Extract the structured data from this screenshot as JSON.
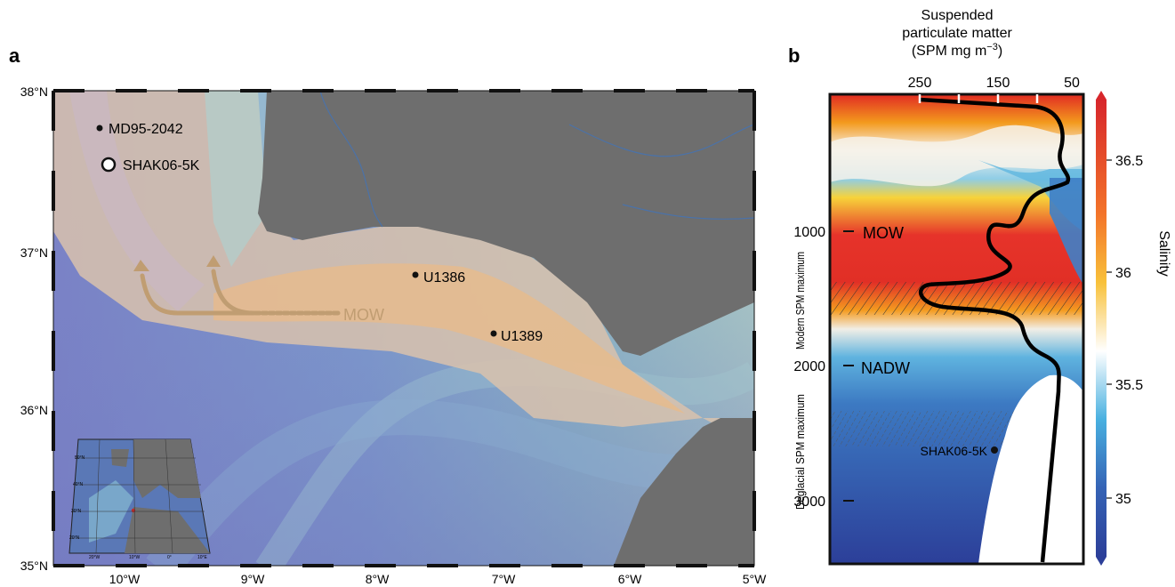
{
  "panel_a": {
    "label": "a",
    "y_ticks": [
      "38°N",
      "37°N",
      "36°N",
      "35°N"
    ],
    "x_ticks": [
      "10°W",
      "9°W",
      "8°W",
      "7°W",
      "6°W",
      "5°W"
    ],
    "sites": [
      {
        "name": "MD95-2042",
        "lon": -10.17,
        "lat": 37.8,
        "marker": "small-black-dot"
      },
      {
        "name": "SHAK06-5K",
        "lon": -10.15,
        "lat": 37.57,
        "marker": "large-white-circle"
      },
      {
        "name": "U1386",
        "lon": -7.68,
        "lat": 36.83,
        "marker": "small-black-dot"
      },
      {
        "name": "U1389",
        "lon": -7.08,
        "lat": 36.42,
        "marker": "small-black-dot"
      }
    ],
    "flow_label": "MOW",
    "inset_lat_labels": [
      "50°N",
      "40°N",
      "30°N",
      "20°N"
    ],
    "inset_lon_labels": [
      "20°W",
      "10°W",
      "0°",
      "10°E"
    ],
    "colors": {
      "land": "#6e6e6e",
      "deep_ocean": "#7b82c4",
      "mow_path": "#dcb889",
      "flow_arrow": "#c09d72"
    }
  },
  "panel_b": {
    "label": "b",
    "top_axis_title": [
      "Suspended",
      "particulate matter",
      "(SPM mg m"
    ],
    "top_axis_superscript": "−3",
    "top_axis_close": ")",
    "top_ticks": [
      "250",
      "150",
      "50"
    ],
    "depth_ticks": [
      "1000",
      "2000",
      "3000"
    ],
    "water_masses": [
      "MOW",
      "NADW"
    ],
    "side_labels": [
      "Modern SPM maximum",
      "Deglacial SPM maximum"
    ],
    "core_label": "SHAK06-5K",
    "colorbar": {
      "title": "Salinity",
      "ticks": [
        "36.5",
        "36",
        "35.5",
        "35"
      ],
      "colors": [
        "#d7262b",
        "#f7a21a",
        "#ffffff",
        "#3a9bd6",
        "#2f4ea8"
      ]
    }
  }
}
